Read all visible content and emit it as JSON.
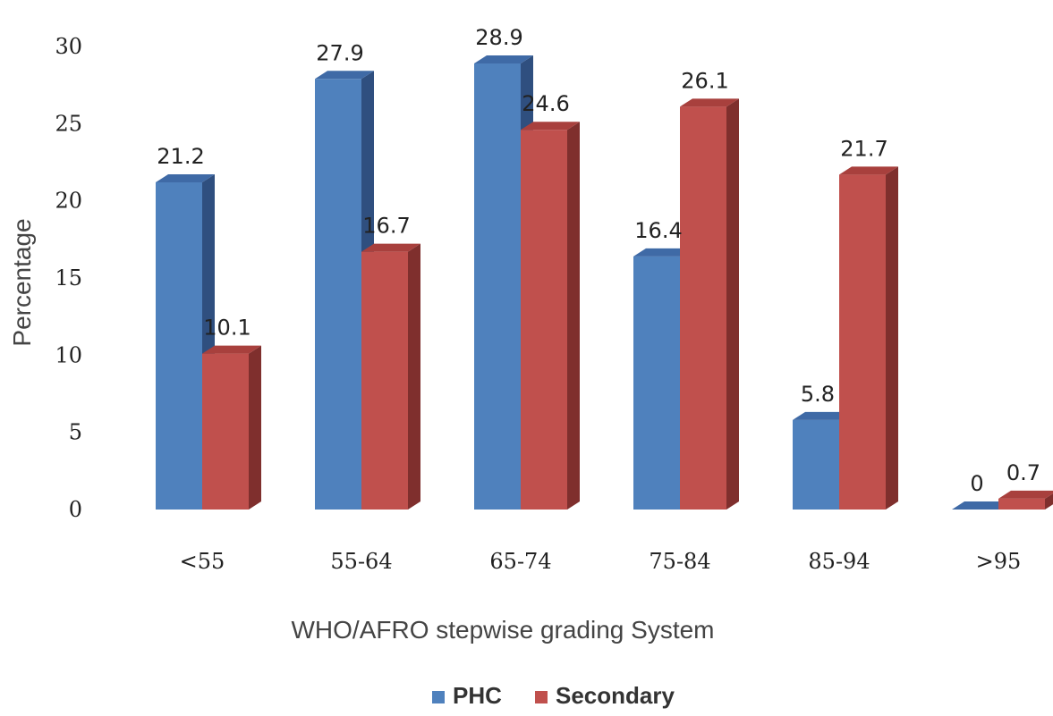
{
  "chart_data": {
    "type": "bar",
    "title": "",
    "xlabel": "WHO/AFRO stepwise grading System",
    "ylabel": "Percentage",
    "categories": [
      "<55",
      "55-64",
      "65-74",
      "75-84",
      "85-94",
      ">95"
    ],
    "series": [
      {
        "name": "PHC",
        "values": [
          21.2,
          27.9,
          28.9,
          16.4,
          5.8,
          0
        ],
        "color": "#4f81bd",
        "top_color": "#3f6aa6",
        "side_color": "#2f4f7f"
      },
      {
        "name": "Secondary",
        "values": [
          10.1,
          16.7,
          24.6,
          26.1,
          21.7,
          0.7
        ],
        "color": "#c0504d",
        "top_color": "#a8403d",
        "side_color": "#7f2f2d"
      }
    ],
    "ylim": [
      0,
      30
    ],
    "yticks": [
      0,
      5,
      10,
      15,
      20,
      25,
      30
    ],
    "grid": false,
    "three_d": true,
    "legend": "bottom-center"
  }
}
